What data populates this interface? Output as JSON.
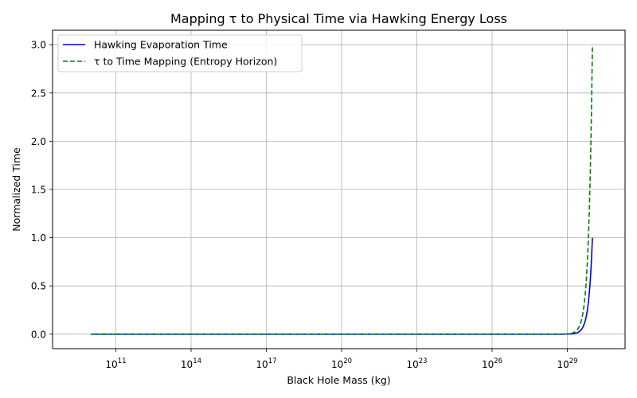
{
  "chart_data": {
    "type": "line",
    "title": "Mapping τ to Physical Time via Hawking Energy Loss",
    "xlabel": "Black Hole Mass (kg)",
    "ylabel": "Normalized Time",
    "x_scale": "log",
    "xlim": [
      300000000.0,
      2e+31
    ],
    "ylim": [
      -0.15,
      3.15
    ],
    "x_ticks": [
      {
        "value": 100000000000.0,
        "base": "10",
        "exp": "11"
      },
      {
        "value": 100000000000000.0,
        "base": "10",
        "exp": "14"
      },
      {
        "value": 1e+17,
        "base": "10",
        "exp": "17"
      },
      {
        "value": 1e+20,
        "base": "10",
        "exp": "20"
      },
      {
        "value": 1e+23,
        "base": "10",
        "exp": "23"
      },
      {
        "value": 1e+26,
        "base": "10",
        "exp": "26"
      },
      {
        "value": 1e+29,
        "base": "10",
        "exp": "29"
      }
    ],
    "y_ticks": [
      0.0,
      0.5,
      1.0,
      1.5,
      2.0,
      2.5,
      3.0
    ],
    "y_tick_labels": [
      "0.0",
      "0.5",
      "1.0",
      "1.5",
      "2.0",
      "2.5",
      "3.0"
    ],
    "grid": true,
    "legend_position": "top-left",
    "x_range": [
      10000000000.0,
      1e+30
    ],
    "series": [
      {
        "name": "Hawking Evaporation Time",
        "color": "#0000ff",
        "dash": "solid",
        "model": "cubic",
        "scale": 1.0
      },
      {
        "name": "τ to Time Mapping (Entropy Horizon)",
        "color": "#008000",
        "dash": "dashed",
        "model": "cubic",
        "scale": 3.0
      }
    ],
    "sample_points": [
      {
        "x": 10000000000.0,
        "y_hawking": 0.0,
        "y_mapping": 0.0
      },
      {
        "x": 1e+29,
        "y_hawking": 0.001,
        "y_mapping": 0.003
      },
      {
        "x": 2e+29,
        "y_hawking": 0.008,
        "y_mapping": 0.024
      },
      {
        "x": 4e+29,
        "y_hawking": 0.064,
        "y_mapping": 0.192
      },
      {
        "x": 6e+29,
        "y_hawking": 0.216,
        "y_mapping": 0.648
      },
      {
        "x": 8e+29,
        "y_hawking": 0.512,
        "y_mapping": 1.536
      },
      {
        "x": 1e+30,
        "y_hawking": 1.0,
        "y_mapping": 3.0
      }
    ]
  }
}
